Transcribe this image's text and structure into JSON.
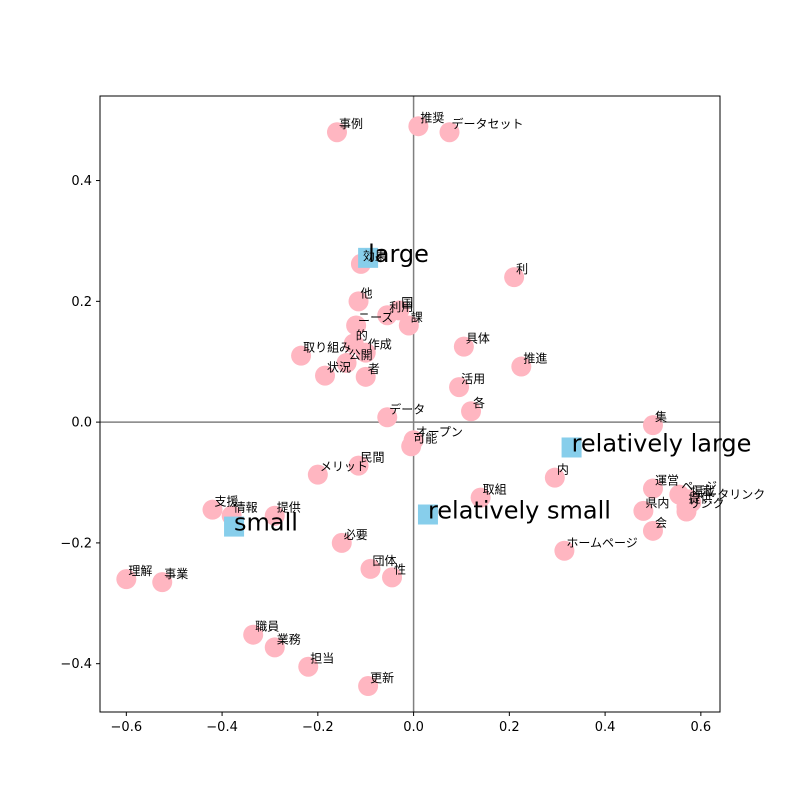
{
  "chart_data": {
    "type": "scatter",
    "xlim": [
      -0.655,
      0.64
    ],
    "ylim": [
      -0.48,
      0.54
    ],
    "x_ticks": [
      -0.6,
      -0.4,
      -0.2,
      0.0,
      0.2,
      0.4,
      0.6
    ],
    "x_tick_labels": [
      "−0.6",
      "−0.4",
      "−0.2",
      "0.0",
      "0.2",
      "0.4",
      "0.6"
    ],
    "y_ticks": [
      -0.4,
      -0.2,
      0.0,
      0.2,
      0.4
    ],
    "y_tick_labels": [
      "−0.4",
      "−0.2",
      "0.0",
      "0.2",
      "0.4"
    ],
    "grid": false,
    "reference_lines": {
      "x": 0,
      "y": 0
    },
    "colors": {
      "words": "#ffb6c1",
      "categories": "#87ceeb",
      "axis_lines": "#808080"
    },
    "series": [
      {
        "name": "",
        "marker": "circle",
        "points": [
          {
            "label": "事例",
            "x": -0.16,
            "y": 0.48
          },
          {
            "label": "推奨",
            "x": 0.01,
            "y": 0.49
          },
          {
            "label": "データセット",
            "x": 0.075,
            "y": 0.48
          },
          {
            "label": "効果",
            "x": -0.11,
            "y": 0.262
          },
          {
            "label": "利",
            "x": 0.21,
            "y": 0.24
          },
          {
            "label": "他",
            "x": -0.115,
            "y": 0.2
          },
          {
            "label": "国",
            "x": -0.03,
            "y": 0.185
          },
          {
            "label": "利用",
            "x": -0.055,
            "y": 0.177
          },
          {
            "label": "ニーズ",
            "x": -0.12,
            "y": 0.16
          },
          {
            "label": "課",
            "x": -0.01,
            "y": 0.16
          },
          {
            "label": "的",
            "x": -0.125,
            "y": 0.13
          },
          {
            "label": "作成",
            "x": -0.1,
            "y": 0.115
          },
          {
            "label": "具体",
            "x": 0.105,
            "y": 0.125
          },
          {
            "label": "取り組み",
            "x": -0.235,
            "y": 0.11
          },
          {
            "label": "公開",
            "x": -0.14,
            "y": 0.098
          },
          {
            "label": "推進",
            "x": 0.225,
            "y": 0.092
          },
          {
            "label": "状況",
            "x": -0.185,
            "y": 0.077
          },
          {
            "label": "者",
            "x": -0.1,
            "y": 0.075
          },
          {
            "label": "活用",
            "x": 0.095,
            "y": 0.058
          },
          {
            "label": "各",
            "x": 0.12,
            "y": 0.018
          },
          {
            "label": "データ",
            "x": -0.055,
            "y": 0.008
          },
          {
            "label": "集",
            "x": 0.5,
            "y": -0.005
          },
          {
            "label": "オープン",
            "x": 0.0,
            "y": -0.03
          },
          {
            "label": "可能",
            "x": -0.005,
            "y": -0.04
          },
          {
            "label": "民間",
            "x": -0.115,
            "y": -0.072
          },
          {
            "label": "メリット",
            "x": -0.2,
            "y": -0.087
          },
          {
            "label": "内",
            "x": 0.295,
            "y": -0.092
          },
          {
            "label": "運営",
            "x": 0.5,
            "y": -0.11
          },
          {
            "label": "ページ",
            "x": 0.555,
            "y": -0.12
          },
          {
            "label": "取組",
            "x": 0.14,
            "y": -0.125
          },
          {
            "label": "掲載",
            "x": 0.575,
            "y": -0.128
          },
          {
            "label": "データリンク",
            "x": 0.58,
            "y": -0.133
          },
          {
            "label": "提供",
            "x": 0.57,
            "y": -0.14
          },
          {
            "label": "リンク",
            "x": 0.57,
            "y": -0.148
          },
          {
            "label": "県内",
            "x": 0.48,
            "y": -0.147
          },
          {
            "label": "支援",
            "x": -0.42,
            "y": -0.145
          },
          {
            "label": "情報",
            "x": -0.38,
            "y": -0.155
          },
          {
            "label": "提供",
            "x": -0.29,
            "y": -0.155
          },
          {
            "label": "会",
            "x": 0.5,
            "y": -0.18
          },
          {
            "label": "必要",
            "x": -0.15,
            "y": -0.2
          },
          {
            "label": "ホームページ",
            "x": 0.315,
            "y": -0.213
          },
          {
            "label": "団体",
            "x": -0.09,
            "y": -0.243
          },
          {
            "label": "性",
            "x": -0.045,
            "y": -0.257
          },
          {
            "label": "理解",
            "x": -0.6,
            "y": -0.26
          },
          {
            "label": "事業",
            "x": -0.525,
            "y": -0.265
          },
          {
            "label": "職員",
            "x": -0.335,
            "y": -0.352
          },
          {
            "label": "業務",
            "x": -0.29,
            "y": -0.373
          },
          {
            "label": "担当",
            "x": -0.22,
            "y": -0.405
          },
          {
            "label": "更新",
            "x": -0.095,
            "y": -0.437
          }
        ]
      },
      {
        "name": "",
        "marker": "square",
        "points": [
          {
            "label": "large",
            "x": -0.095,
            "y": 0.272
          },
          {
            "label": "relatively large",
            "x": 0.33,
            "y": -0.042
          },
          {
            "label": "relatively small",
            "x": 0.03,
            "y": -0.153
          },
          {
            "label": "small",
            "x": -0.375,
            "y": -0.173
          }
        ]
      }
    ]
  }
}
